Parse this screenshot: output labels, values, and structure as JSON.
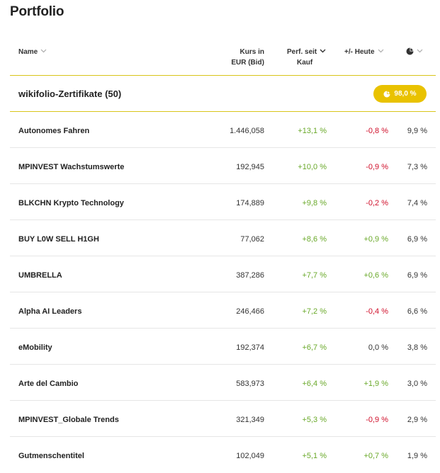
{
  "page": {
    "title": "Portfolio"
  },
  "columns": {
    "name": "Name",
    "kurs_line1": "Kurs in",
    "kurs_line2": "EUR (Bid)",
    "perf_line1": "Perf. seit",
    "perf_line2": "Kauf",
    "heute": "+/- Heute",
    "share_icon": "pie-chart-icon"
  },
  "group": {
    "label": "wikifolio-Zertifikate (50)",
    "badge_value": "98,0 %",
    "badge_icon": "pie-chart-icon"
  },
  "colors": {
    "accent_yellow": "#e9c200",
    "positive": "#6aa92a",
    "negative": "#d0102b"
  },
  "rows": [
    {
      "name": "Autonomes Fahren",
      "kurs": "1.446,058",
      "perf": "+13,1 %",
      "heute": "-0,8 %",
      "heute_sign": "neg",
      "share": "9,9 %"
    },
    {
      "name": "MPINVEST Wachstumswerte",
      "kurs": "192,945",
      "perf": "+10,0 %",
      "heute": "-0,9 %",
      "heute_sign": "neg",
      "share": "7,3 %"
    },
    {
      "name": "BLKCHN Krypto Technology",
      "kurs": "174,889",
      "perf": "+9,8 %",
      "heute": "-0,2 %",
      "heute_sign": "neg",
      "share": "7,4 %"
    },
    {
      "name": "BUY L0W SELL H1GH",
      "kurs": "77,062",
      "perf": "+8,6 %",
      "heute": "+0,9 %",
      "heute_sign": "pos",
      "share": "6,9 %"
    },
    {
      "name": "UMBRELLA",
      "kurs": "387,286",
      "perf": "+7,7 %",
      "heute": "+0,6 %",
      "heute_sign": "pos",
      "share": "6,9 %"
    },
    {
      "name": "Alpha AI Leaders",
      "kurs": "246,466",
      "perf": "+7,2 %",
      "heute": "-0,4 %",
      "heute_sign": "neg",
      "share": "6,6 %"
    },
    {
      "name": "eMobility",
      "kurs": "192,374",
      "perf": "+6,7 %",
      "heute": "0,0 %",
      "heute_sign": "neu",
      "share": "3,8 %"
    },
    {
      "name": "Arte del Cambio",
      "kurs": "583,973",
      "perf": "+6,4 %",
      "heute": "+1,9 %",
      "heute_sign": "pos",
      "share": "3,0 %"
    },
    {
      "name": "MPINVEST_Globale Trends",
      "kurs": "321,349",
      "perf": "+5,3 %",
      "heute": "-0,9 %",
      "heute_sign": "neg",
      "share": "2,9 %"
    },
    {
      "name": "Gutmenschentitel",
      "kurs": "102,049",
      "perf": "+5,1 %",
      "heute": "+0,7 %",
      "heute_sign": "pos",
      "share": "1,9 %"
    }
  ]
}
